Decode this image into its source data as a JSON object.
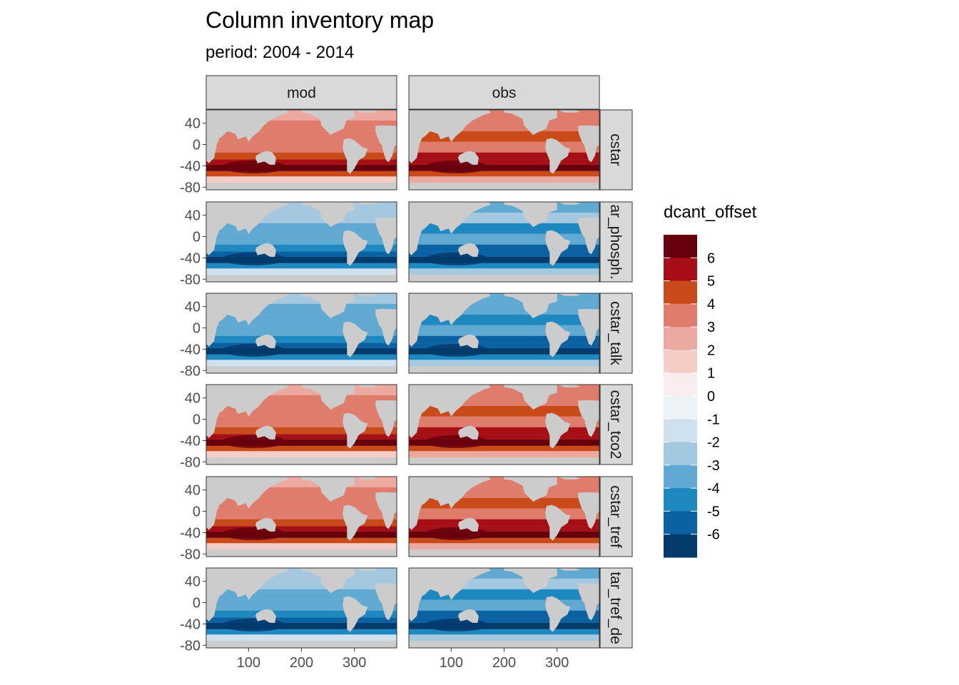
{
  "title": "Column inventory map",
  "subtitle": "period: 2004 - 2014",
  "chart_data": {
    "type": "heatmap",
    "title": "Column inventory map",
    "subtitle": "period: 2004 - 2014",
    "facet_columns": [
      "mod",
      "obs"
    ],
    "facet_rows": [
      "cstar",
      "cstar_phosphate",
      "cstar_talk",
      "cstar_tco2",
      "cstar_tref",
      "cstar_tref_delta"
    ],
    "facet_rows_visible": [
      "cstar",
      "ar_phosph.",
      "cstar_talk",
      "cstar_tco2",
      "cstar_tref",
      "tar_tref_de"
    ],
    "x_ticks": [
      100,
      200,
      300
    ],
    "y_ticks": [
      40,
      0,
      -40,
      -80
    ],
    "xlim": [
      20,
      380
    ],
    "ylim": [
      -85,
      65
    ],
    "legend": {
      "title": "dcant_offset",
      "placement": "right",
      "labels": [
        "6",
        "5",
        "4",
        "3",
        "2",
        "1",
        "0",
        "-1",
        "-2",
        "-3",
        "-4",
        "-5",
        "-6"
      ],
      "colors": [
        "#67000d",
        "#a50f15",
        "#cb4a1a",
        "#df7c6b",
        "#eda9a0",
        "#f4cdc8",
        "#f8ecec",
        "#edf2f7",
        "#cfe0ee",
        "#a4c8e0",
        "#60a9d2",
        "#1e88c0",
        "#0b62a2",
        "#053a6d"
      ]
    },
    "panel_mean_sign": {
      "mod": [
        "positive",
        "negative",
        "negative",
        "positive",
        "positive",
        "negative"
      ],
      "obs": [
        "positive",
        "negative",
        "negative",
        "positive",
        "positive",
        "negative"
      ]
    },
    "land_color": "#cccccc",
    "background": "#ffffff"
  }
}
